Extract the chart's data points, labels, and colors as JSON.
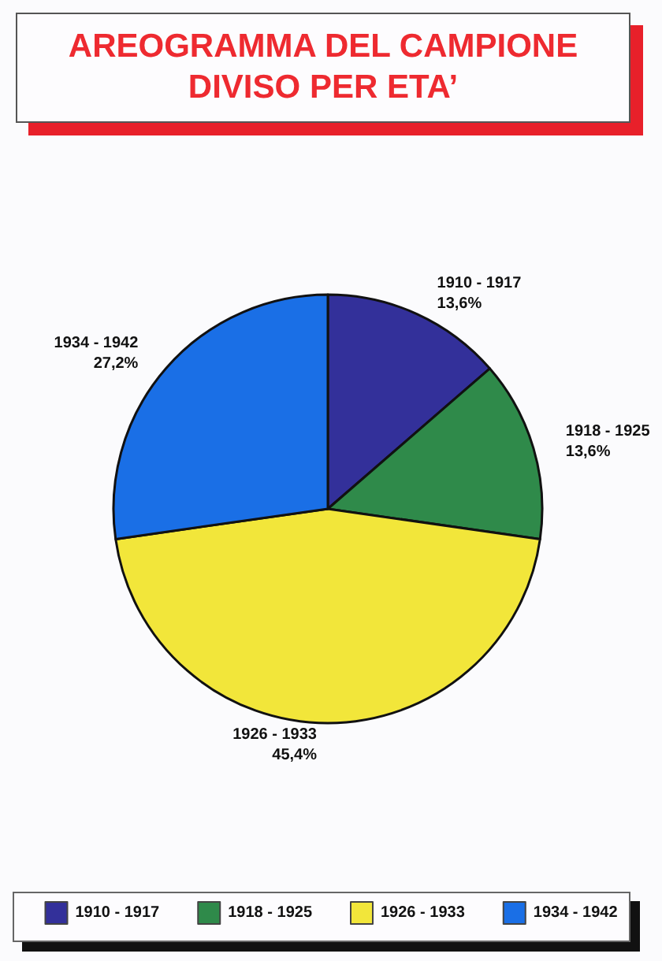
{
  "chart_data": {
    "type": "pie",
    "title": "AREOGRAMMA DEL CAMPIONE DIVISO PER ETA’",
    "categories": [
      "1910 - 1917",
      "1918 - 1925",
      "1926 - 1933",
      "1934 - 1942"
    ],
    "values": [
      13.6,
      13.6,
      45.4,
      27.2
    ],
    "value_labels": [
      "13,6%",
      "13,6%",
      "45,4%",
      "27,2%"
    ],
    "colors": [
      "#33309a",
      "#2f8a4a",
      "#f2e63a",
      "#1a6fe6"
    ],
    "legend": "bottom"
  }
}
